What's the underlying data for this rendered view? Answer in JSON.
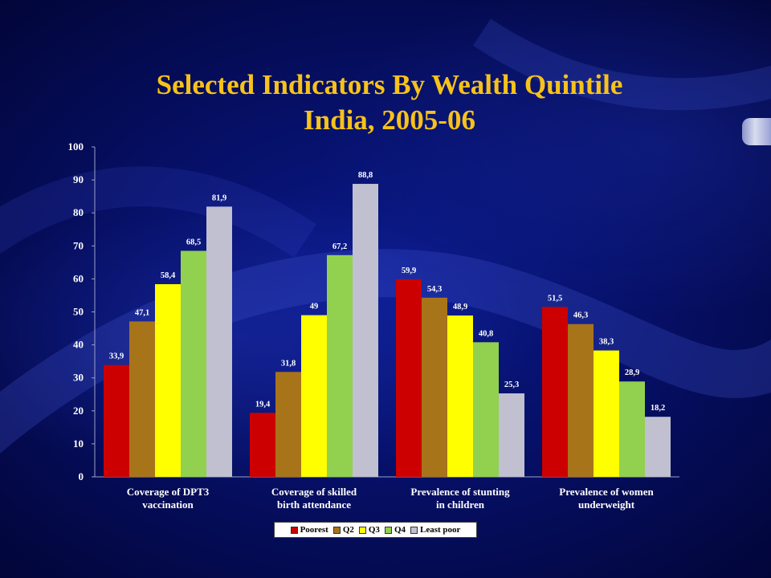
{
  "slide": {
    "title_line1": "Selected Indicators By Wealth Quintile",
    "title_line2": "India, 2005-06"
  },
  "chart_data": {
    "type": "bar",
    "title": "Selected Indicators By Wealth Quintile India, 2005-06",
    "categories": [
      [
        "Coverage of DPT3",
        "vaccination"
      ],
      [
        "Coverage of skilled",
        "birth attendance"
      ],
      [
        "Prevalence of stunting",
        "in children"
      ],
      [
        "Prevalence of women",
        "underweight"
      ]
    ],
    "series": [
      {
        "name": "Poorest",
        "color": "#cc0000",
        "values": [
          33.9,
          19.4,
          59.9,
          51.5
        ],
        "labels": [
          "33,9",
          "19,4",
          "59,9",
          "51,5"
        ]
      },
      {
        "name": "Q2",
        "color": "#a8741a",
        "values": [
          47.1,
          31.8,
          54.3,
          46.3
        ],
        "labels": [
          "47,1",
          "31,8",
          "54,3",
          "46,3"
        ]
      },
      {
        "name": "Q3",
        "color": "#ffff00",
        "values": [
          58.4,
          49,
          48.9,
          38.3
        ],
        "labels": [
          "58,4",
          "49",
          "48,9",
          "38,3"
        ]
      },
      {
        "name": "Q4",
        "color": "#92d050",
        "values": [
          68.5,
          67.2,
          40.8,
          28.9
        ],
        "labels": [
          "68,5",
          "67,2",
          "40,8",
          "28,9"
        ]
      },
      {
        "name": "Least poor",
        "color": "#c0c0d0",
        "values": [
          81.9,
          88.8,
          25.3,
          18.2
        ],
        "labels": [
          "81,9",
          "88,8",
          "25,3",
          "18,2"
        ]
      }
    ],
    "ylim": [
      0,
      100
    ],
    "yticks": [
      0,
      10,
      20,
      30,
      40,
      50,
      60,
      70,
      80,
      90,
      100
    ],
    "grid": false,
    "legend_position": "bottom",
    "xlabel": "",
    "ylabel": ""
  }
}
